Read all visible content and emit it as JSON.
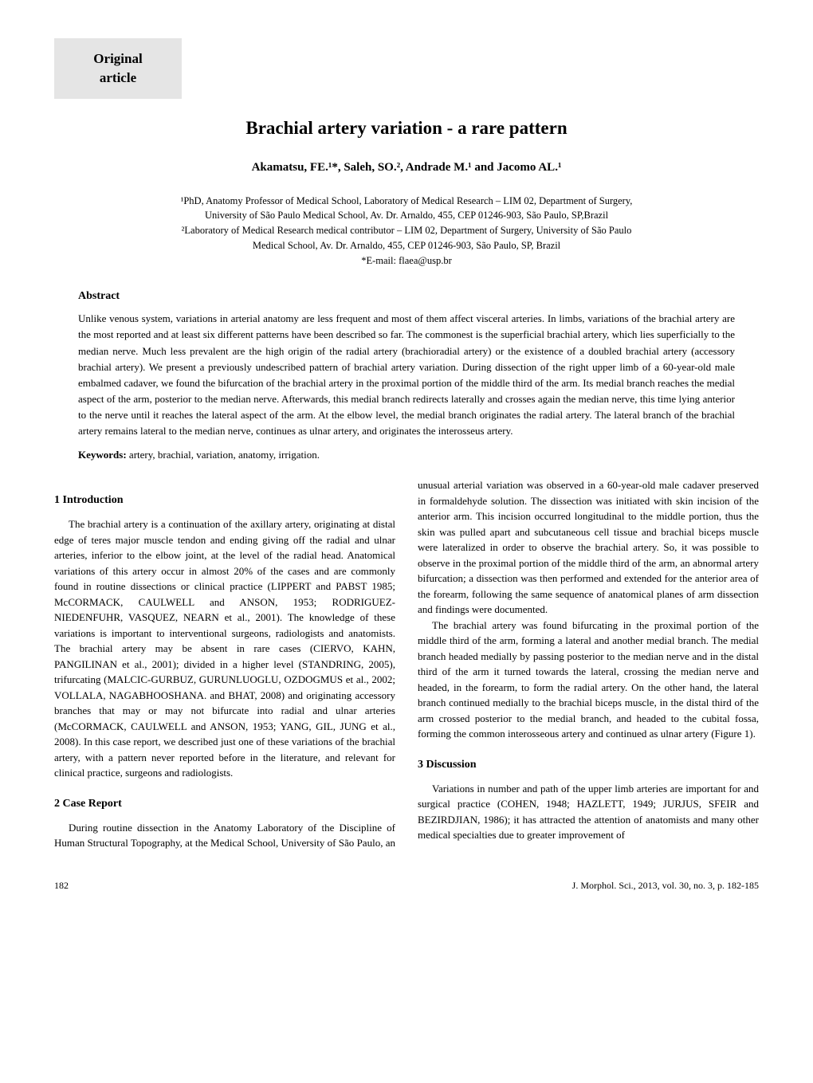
{
  "header_box": {
    "line1": "Original",
    "line2": "article"
  },
  "title": "Brachial artery variation - a rare pattern",
  "authors": "Akamatsu, FE.¹*, Saleh, SO.², Andrade M.¹ and Jacomo AL.¹",
  "affiliations": {
    "line1": "¹PhD, Anatomy Professor of Medical School, Laboratory of Medical Research – LIM 02, Department of Surgery,",
    "line2": "University of São Paulo Medical School, Av. Dr. Arnaldo, 455, CEP 01246-903, São Paulo, SP,Brazil",
    "line3": "²Laboratory of Medical Research medical contributor – LIM 02, Department of Surgery, University of São Paulo",
    "line4": "Medical School, Av. Dr. Arnaldo, 455, CEP 01246-903, São Paulo, SP, Brazil",
    "line5": "*E-mail: flaea@usp.br"
  },
  "abstract": {
    "heading": "Abstract",
    "text": "Unlike venous system, variations in arterial anatomy are less frequent and most of them affect visceral arteries. In limbs, variations of the brachial artery are the most reported and at least six different patterns have been described so far. The commonest is the superficial brachial artery, which lies superficially to the median nerve. Much less prevalent are the high origin of the radial artery (brachioradial artery) or the existence of a doubled brachial artery (accessory brachial artery). We present a previously undescribed pattern of brachial artery variation. During dissection of the right upper limb of a 60-year-old male embalmed cadaver, we found the bifurcation of the brachial artery in the proximal portion of the middle third of the arm. Its medial branch reaches the medial aspect of the arm, posterior to the median nerve. Afterwards, this medial branch redirects laterally and crosses again the median nerve, this time lying anterior to the nerve until it reaches the lateral aspect of the arm. At the elbow level, the medial branch originates the radial artery. The lateral branch of the brachial artery remains lateral to the median nerve, continues as ulnar artery, and originates the interosseus artery.",
    "keywords_label": "Keywords:",
    "keywords_text": " artery, brachial, variation, anatomy, irrigation."
  },
  "sections": {
    "intro_heading": "1 Introduction",
    "intro_p1": "The brachial artery is a continuation of the axillary artery, originating at distal edge of teres major muscle tendon and ending giving off the radial and ulnar arteries, inferior to the elbow joint, at the level of the radial head. Anatomical variations of this artery occur in almost 20% of the cases and are commonly found in routine dissections or clinical practice (LIPPERT and PABST 1985; McCORMACK, CAULWELL and ANSON, 1953; RODRIGUEZ-NIEDENFUHR, VASQUEZ, NEARN et al., 2001). The knowledge of these variations is important to interventional surgeons, radiologists and anatomists. The brachial artery may be absent in rare cases (CIERVO, KAHN, PANGILINAN et al., 2001); divided in a higher level (STANDRING, 2005), trifurcating (MALCIC-GURBUZ, GURUNLUOGLU, OZDOGMUS et al., 2002; VOLLALA, NAGABHOOSHANA. and BHAT, 2008) and originating accessory branches that may or may not bifurcate into radial and ulnar arteries (McCORMACK, CAULWELL and ANSON, 1953; YANG, GIL, JUNG et al., 2008). In this case report, we described just one of these variations of the brachial artery, with a pattern never reported before in the literature, and relevant for clinical practice, surgeons and radiologists.",
    "case_heading": "2 Case Report",
    "case_p1": "During routine dissection in the Anatomy Laboratory of the Discipline of Human Structural Topography, at the Medical School, University of São Paulo, an unusual arterial variation was observed in a 60-year-old male cadaver preserved in formaldehyde solution. The dissection was initiated with skin incision of the anterior arm. This incision occurred longitudinal to the middle portion, thus the skin was pulled apart and subcutaneous cell tissue and brachial biceps muscle were lateralized in order to observe the brachial artery. So, it was possible to observe in the proximal portion of the middle third of the arm, an abnormal artery bifurcation; a dissection was then performed and extended for the anterior area of the forearm, following the same sequence of anatomical planes of arm dissection and findings were documented.",
    "case_p2": "The brachial artery was found bifurcating in the proximal portion of the middle third of the arm, forming a lateral and another medial branch. The medial branch headed medially by passing posterior to the median nerve and in the distal third of the arm it turned towards the lateral, crossing the median nerve and headed, in the forearm, to form the radial artery. On the other hand, the lateral branch continued medially to the brachial biceps muscle, in the distal third of the arm crossed posterior to the medial branch, and headed to the cubital fossa, forming the common interosseous artery and continued as ulnar artery (Figure 1).",
    "disc_heading": "3 Discussion",
    "disc_p1": "Variations in number and path of the upper limb arteries are important for and surgical practice (COHEN, 1948; HAZLETT, 1949; JURJUS, SFEIR and BEZIRDJIAN, 1986); it has attracted the attention of anatomists and many other medical specialties due to greater improvement of"
  },
  "footer": {
    "page_number": "182",
    "citation": "J. Morphol. Sci., 2013, vol. 30, no. 3, p. 182-185"
  },
  "colors": {
    "header_box_bg": "#e5e5e5",
    "text": "#000000",
    "background": "#ffffff"
  }
}
